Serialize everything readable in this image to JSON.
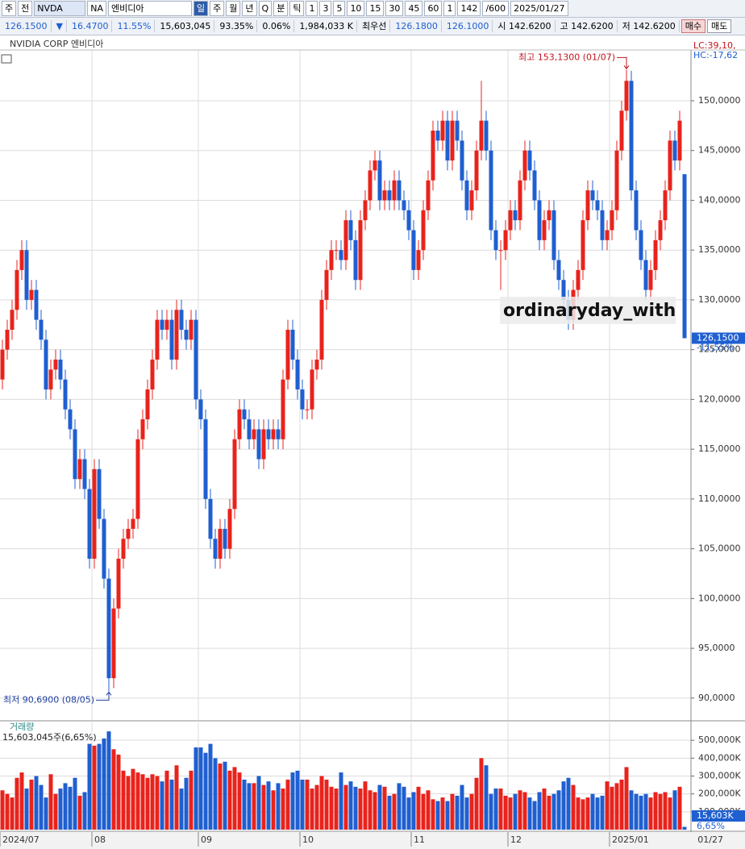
{
  "toolbar": {
    "row1": [
      "주",
      "전",
      "NVDA",
      "NA",
      "엔비디아",
      "일",
      "주",
      "월",
      "년",
      "Q",
      "분",
      "틱",
      "1",
      "3",
      "5",
      "10",
      "15",
      "30",
      "45",
      "60",
      "1",
      "142",
      "/600",
      "2025/01/27"
    ],
    "row2": [
      "126.1500",
      "▼",
      "16.4700",
      "11.55%",
      "15,603,045",
      "93.35%",
      "0.06%",
      "1,984,033 K",
      "최우선",
      "126.1800",
      "126.1000",
      "시 142.6200",
      "고 142.6200",
      "저 142.6200",
      "매수",
      "매도"
    ]
  },
  "chart_header": "NVIDIA CORP  엔비디아",
  "watermark": "ordinaryday_with",
  "chart_data": [
    {
      "type": "candlestick",
      "up_color": "#e8231c",
      "down_color": "#1f5fd0",
      "ylim": [
        87.8,
        155.1
      ],
      "yticks": [
        {
          "value": 90,
          "label": "90,0000"
        },
        {
          "value": 95,
          "label": "95,0000"
        },
        {
          "value": 100,
          "label": "100,0000"
        },
        {
          "value": 105,
          "label": "105,0000"
        },
        {
          "value": 110,
          "label": "110,0000"
        },
        {
          "value": 115,
          "label": "115,0000"
        },
        {
          "value": 120,
          "label": "120,0000"
        },
        {
          "value": 125,
          "label": "125,0000"
        },
        {
          "value": 130,
          "label": "130,0000"
        },
        {
          "value": 135,
          "label": "135,0000"
        },
        {
          "value": 140,
          "label": "140,0000"
        },
        {
          "value": 145,
          "label": "145,0000"
        },
        {
          "value": 150,
          "label": "150,0000"
        }
      ],
      "grid": true,
      "high_label": "최고 153,1300 (01/07)",
      "low_label": "최저 90,6900 (08/05)",
      "last_price_label": "126,1500",
      "last_change_label": "-11,55%",
      "lc_label": "LC:39,10,",
      "hc_label": "HC:-17,62",
      "categories": [
        "2024/07",
        null,
        null,
        null,
        null,
        null,
        null,
        null,
        null,
        null,
        null,
        null,
        null,
        null,
        null,
        null,
        null,
        null,
        null,
        "08",
        null,
        null,
        null,
        null,
        null,
        null,
        null,
        null,
        null,
        null,
        null,
        null,
        null,
        null,
        null,
        null,
        null,
        null,
        null,
        null,
        null,
        "09",
        null,
        null,
        null,
        null,
        null,
        null,
        null,
        null,
        null,
        null,
        null,
        null,
        null,
        null,
        null,
        null,
        null,
        null,
        null,
        null,
        "10",
        null,
        null,
        null,
        null,
        null,
        null,
        null,
        null,
        null,
        null,
        null,
        null,
        null,
        null,
        null,
        null,
        null,
        null,
        null,
        null,
        null,
        null,
        "11",
        null,
        null,
        null,
        null,
        null,
        null,
        null,
        null,
        null,
        null,
        null,
        null,
        null,
        null,
        null,
        null,
        null,
        null,
        null,
        "12",
        null,
        null,
        null,
        null,
        null,
        null,
        null,
        null,
        null,
        null,
        null,
        null,
        null,
        null,
        null,
        null,
        null,
        null,
        null,
        null,
        "2025/01",
        null,
        null,
        null,
        null,
        null,
        null,
        null,
        null,
        null,
        null,
        null,
        null,
        null,
        null,
        "01/27"
      ],
      "candles": [
        [
          122,
          126,
          121,
          125
        ],
        [
          125,
          128,
          124,
          127
        ],
        [
          127,
          130,
          126,
          129
        ],
        [
          129,
          134,
          128,
          133
        ],
        [
          133,
          136,
          132,
          135
        ],
        [
          135,
          136,
          129,
          130
        ],
        [
          130,
          132,
          129,
          131
        ],
        [
          131,
          132,
          127,
          128
        ],
        [
          128,
          129,
          125,
          126
        ],
        [
          126,
          127,
          120,
          121
        ],
        [
          121,
          124,
          120,
          123
        ],
        [
          123,
          125,
          122,
          124
        ],
        [
          124,
          125,
          121,
          122
        ],
        [
          122,
          123,
          118,
          119
        ],
        [
          119,
          120,
          116,
          117
        ],
        [
          117,
          118,
          111,
          112
        ],
        [
          112,
          115,
          111,
          114
        ],
        [
          114,
          115,
          110,
          111
        ],
        [
          111,
          112,
          103,
          104
        ],
        [
          104,
          114,
          103,
          113
        ],
        [
          113,
          114,
          107,
          108
        ],
        [
          108,
          109,
          101,
          102
        ],
        [
          102,
          103,
          90.69,
          92
        ],
        [
          92,
          100,
          91,
          99
        ],
        [
          99,
          105,
          98,
          104
        ],
        [
          104,
          107,
          103,
          106
        ],
        [
          106,
          108,
          105,
          107
        ],
        [
          107,
          109,
          106,
          108
        ],
        [
          108,
          117,
          107,
          116
        ],
        [
          116,
          119,
          115,
          118
        ],
        [
          118,
          122,
          117,
          121
        ],
        [
          121,
          125,
          120,
          124
        ],
        [
          124,
          129,
          123,
          128
        ],
        [
          128,
          129,
          126,
          127
        ],
        [
          127,
          129,
          126,
          128
        ],
        [
          128,
          129,
          123,
          124
        ],
        [
          124,
          130,
          123,
          129
        ],
        [
          129,
          130,
          126,
          127
        ],
        [
          127,
          128,
          125,
          126
        ],
        [
          126,
          129,
          125,
          128
        ],
        [
          128,
          129,
          119,
          120
        ],
        [
          120,
          121,
          117,
          118
        ],
        [
          118,
          119,
          109,
          110
        ],
        [
          110,
          111,
          105,
          106
        ],
        [
          106,
          107,
          103,
          104
        ],
        [
          104,
          108,
          103,
          107
        ],
        [
          107,
          108,
          104,
          105
        ],
        [
          105,
          110,
          104,
          109
        ],
        [
          109,
          117,
          108,
          116
        ],
        [
          116,
          120,
          115,
          119
        ],
        [
          119,
          120,
          117,
          118
        ],
        [
          118,
          119,
          115,
          116
        ],
        [
          116,
          118,
          115,
          117
        ],
        [
          117,
          118,
          113,
          114
        ],
        [
          114,
          118,
          113,
          117
        ],
        [
          117,
          118,
          115,
          116
        ],
        [
          116,
          118,
          115,
          117
        ],
        [
          117,
          118,
          115,
          116
        ],
        [
          116,
          123,
          115,
          122
        ],
        [
          122,
          128,
          121,
          127
        ],
        [
          127,
          128,
          123,
          124
        ],
        [
          124,
          125,
          120,
          121
        ],
        [
          121,
          122,
          118,
          119
        ],
        [
          119,
          120,
          118,
          119
        ],
        [
          119,
          124,
          118,
          123
        ],
        [
          123,
          125,
          122,
          124
        ],
        [
          124,
          131,
          123,
          130
        ],
        [
          130,
          134,
          129,
          133
        ],
        [
          133,
          136,
          132,
          135
        ],
        [
          135,
          136,
          134,
          135
        ],
        [
          135,
          136,
          133,
          134
        ],
        [
          134,
          139,
          133,
          138
        ],
        [
          138,
          139,
          135,
          136
        ],
        [
          136,
          137,
          131,
          132
        ],
        [
          132,
          139,
          131,
          138
        ],
        [
          138,
          141,
          137,
          140
        ],
        [
          140,
          144,
          139,
          143
        ],
        [
          143,
          145,
          142,
          144
        ],
        [
          144,
          145,
          139,
          140
        ],
        [
          140,
          142,
          139,
          141
        ],
        [
          141,
          142,
          139,
          140
        ],
        [
          140,
          143,
          139,
          142
        ],
        [
          142,
          143,
          139,
          140
        ],
        [
          140,
          141,
          138,
          139
        ],
        [
          139,
          140,
          136,
          137
        ],
        [
          137,
          138,
          132,
          133
        ],
        [
          133,
          136,
          132,
          135
        ],
        [
          135,
          140,
          134,
          139
        ],
        [
          139,
          143,
          138,
          142
        ],
        [
          142,
          148,
          141,
          147
        ],
        [
          147,
          148,
          145,
          146
        ],
        [
          146,
          149,
          145,
          148
        ],
        [
          148,
          149,
          143,
          144
        ],
        [
          144,
          149,
          143,
          148
        ],
        [
          148,
          149,
          145,
          146
        ],
        [
          146,
          147,
          141,
          142
        ],
        [
          142,
          143,
          138,
          139
        ],
        [
          139,
          142,
          138,
          141
        ],
        [
          141,
          146,
          140,
          145
        ],
        [
          145,
          152,
          144,
          148
        ],
        [
          148,
          149,
          144,
          145
        ],
        [
          145,
          146,
          136,
          137
        ],
        [
          137,
          138,
          134,
          135
        ],
        [
          135,
          136,
          131,
          135
        ],
        [
          135,
          138,
          134,
          137
        ],
        [
          137,
          140,
          136,
          139
        ],
        [
          139,
          140,
          137,
          138
        ],
        [
          138,
          143,
          137,
          142
        ],
        [
          142,
          146,
          141,
          145
        ],
        [
          145,
          146,
          142,
          143
        ],
        [
          143,
          144,
          139,
          140
        ],
        [
          140,
          141,
          135,
          136
        ],
        [
          136,
          139,
          135,
          138
        ],
        [
          138,
          140,
          137,
          139
        ],
        [
          139,
          140,
          133,
          134
        ],
        [
          134,
          135,
          131,
          132
        ],
        [
          132,
          133,
          129,
          130
        ],
        [
          130,
          131,
          127,
          128
        ],
        [
          128,
          132,
          127,
          131
        ],
        [
          131,
          134,
          130,
          133
        ],
        [
          133,
          139,
          132,
          138
        ],
        [
          138,
          142,
          137,
          141
        ],
        [
          141,
          142,
          139,
          140
        ],
        [
          140,
          141,
          138,
          139
        ],
        [
          139,
          140,
          135,
          136
        ],
        [
          136,
          138,
          135,
          137
        ],
        [
          137,
          140,
          136,
          139
        ],
        [
          139,
          146,
          138,
          145
        ],
        [
          145,
          150,
          144,
          149
        ],
        [
          149,
          153.13,
          148,
          152
        ],
        [
          152,
          153,
          140,
          141
        ],
        [
          141,
          142,
          136,
          137
        ],
        [
          137,
          138,
          133,
          134
        ],
        [
          134,
          135,
          130,
          131
        ],
        [
          131,
          134,
          130,
          133
        ],
        [
          133,
          137,
          132,
          136
        ],
        [
          136,
          139,
          135,
          138
        ],
        [
          138,
          142,
          137,
          141
        ],
        [
          141,
          147,
          140,
          146
        ],
        [
          146,
          147,
          143,
          144
        ],
        [
          144,
          149,
          143,
          148
        ],
        [
          142.62,
          142.62,
          126.15,
          126.15
        ]
      ]
    },
    {
      "type": "volume",
      "title": "거래량",
      "subtitle": "15,603,045주(6,65%)",
      "last_volume_label": "15,603K",
      "last_volume_change": "6,65%",
      "ylim": [
        0,
        600000
      ],
      "yticks": [
        {
          "value": 100000,
          "label": "100,000K"
        },
        {
          "value": 200000,
          "label": "200,000K"
        },
        {
          "value": 300000,
          "label": "300,000K"
        },
        {
          "value": 400000,
          "label": "400,000K"
        },
        {
          "value": 500000,
          "label": "500,000K"
        }
      ],
      "values": [
        220000,
        200000,
        180000,
        290000,
        320000,
        230000,
        280000,
        300000,
        250000,
        180000,
        310000,
        200000,
        230000,
        260000,
        240000,
        290000,
        190000,
        210000,
        480000,
        470000,
        480000,
        510000,
        550000,
        450000,
        420000,
        330000,
        300000,
        340000,
        320000,
        310000,
        290000,
        310000,
        300000,
        270000,
        330000,
        280000,
        360000,
        230000,
        290000,
        330000,
        460000,
        460000,
        430000,
        480000,
        400000,
        370000,
        380000,
        330000,
        350000,
        320000,
        280000,
        260000,
        260000,
        300000,
        250000,
        270000,
        220000,
        260000,
        230000,
        280000,
        320000,
        330000,
        280000,
        280000,
        230000,
        250000,
        300000,
        280000,
        240000,
        230000,
        320000,
        250000,
        270000,
        240000,
        230000,
        270000,
        220000,
        210000,
        250000,
        240000,
        190000,
        200000,
        260000,
        240000,
        180000,
        210000,
        240000,
        200000,
        220000,
        170000,
        160000,
        180000,
        160000,
        200000,
        190000,
        250000,
        180000,
        200000,
        290000,
        400000,
        360000,
        200000,
        230000,
        230000,
        190000,
        180000,
        200000,
        220000,
        210000,
        180000,
        160000,
        210000,
        230000,
        190000,
        200000,
        220000,
        270000,
        290000,
        250000,
        180000,
        170000,
        180000,
        200000,
        180000,
        190000,
        270000,
        240000,
        260000,
        280000,
        350000,
        220000,
        200000,
        190000,
        200000,
        180000,
        210000,
        200000,
        210000,
        180000,
        220000,
        240000,
        15603
      ]
    }
  ]
}
